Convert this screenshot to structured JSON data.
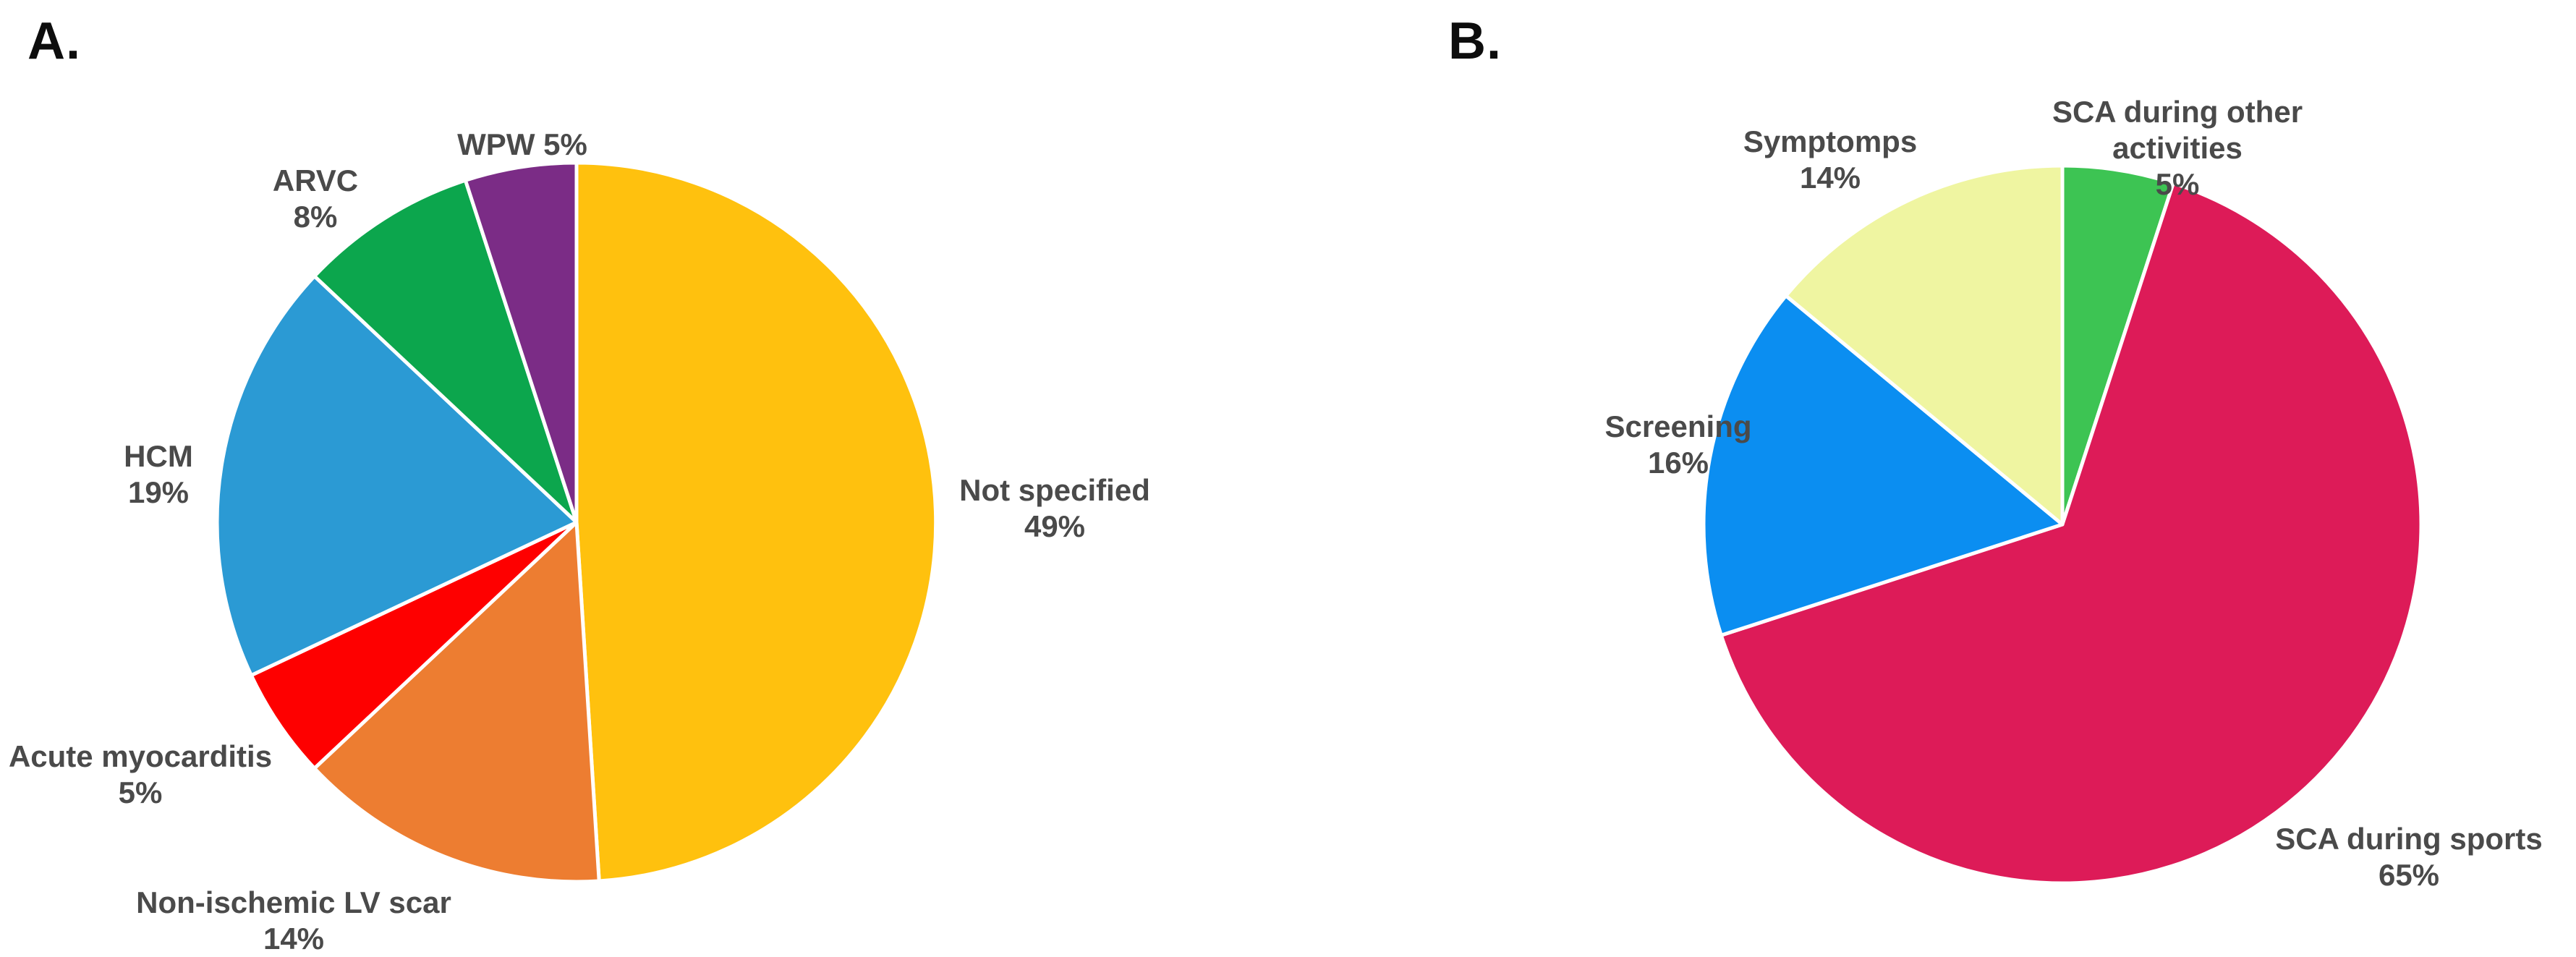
{
  "figure": {
    "background": "#FFFFFF",
    "label_color": "#4A4A4A",
    "panel_label_color": "#0D0D0D",
    "slice_gap_color": "#FFFFFF"
  },
  "chart_data": [
    {
      "type": "pie",
      "panel": "A.",
      "start_angle_deg": 0,
      "direction": "clockwise",
      "legend_position": "outside-labels",
      "label_format": "{label} {value}%",
      "slices": [
        {
          "label": "Not specified",
          "value": 49,
          "color": "#FFC10E"
        },
        {
          "label": "Non-ischemic LV scar",
          "value": 14,
          "color": "#ED7D31"
        },
        {
          "label": "Acute myocarditis",
          "value": 5,
          "color": "#FE0000"
        },
        {
          "label": "HCM",
          "value": 19,
          "color": "#2B9AD4"
        },
        {
          "label": "ARVC",
          "value": 8,
          "color": "#0CA64D"
        },
        {
          "label": "WPW",
          "value": 5,
          "color": "#7B2C86"
        }
      ]
    },
    {
      "type": "pie",
      "panel": "B.",
      "start_angle_deg": 0,
      "direction": "clockwise",
      "legend_position": "outside-labels",
      "label_format": "{label} {value}%",
      "slices": [
        {
          "label": "SCA during other activities",
          "value": 5,
          "color": "#3DC453"
        },
        {
          "label": "SCA during sports",
          "value": 65,
          "color": "#DD1B58"
        },
        {
          "label": "Screening",
          "value": 16,
          "color": "#0B8EF1"
        },
        {
          "label": "Symptomps",
          "value": 14,
          "color": "#EFF5A1"
        }
      ]
    }
  ]
}
